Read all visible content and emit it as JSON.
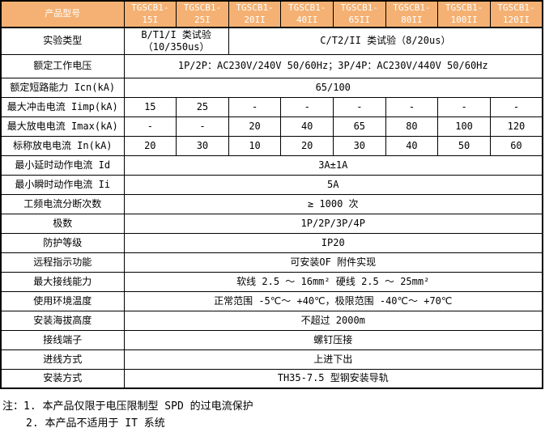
{
  "colors": {
    "header_bg": "#F4B173",
    "header_text": "#FFFFFF",
    "border": "#000000",
    "page_bg": "#FFFFFF"
  },
  "table": {
    "corner_label": "产品型号",
    "models": [
      "TGSCB1-15I",
      "TGSCB1-25I",
      "TGSCB1-20II",
      "TGSCB1-40II",
      "TGSCB1-65II",
      "TGSCB1-80II",
      "TGSCB1-100II",
      "TGSCB1-120II"
    ],
    "rows": [
      {
        "label": "实验类型",
        "size": "tall",
        "cells": [
          {
            "text": "B/T1/I 类试验（10/350us）",
            "span": 2
          },
          {
            "text": "C/T2/II 类试验（8/20us）",
            "span": 6
          }
        ]
      },
      {
        "label": "额定工作电压",
        "size": "mid",
        "cells": [
          {
            "text": "1P/2P：AC230V/240V 50/60Hz；3P/4P：AC230V/440V 50/60Hz",
            "span": 8
          }
        ]
      },
      {
        "label": "额定短路能力 Icn(kA)",
        "cells": [
          {
            "text": "65/100",
            "span": 8
          }
        ]
      },
      {
        "label": "最大冲击电流 Iimp(kA)",
        "cells": [
          {
            "text": "15",
            "span": 1
          },
          {
            "text": "25",
            "span": 1
          },
          {
            "text": "-",
            "span": 1
          },
          {
            "text": "-",
            "span": 1
          },
          {
            "text": "-",
            "span": 1
          },
          {
            "text": "-",
            "span": 1
          },
          {
            "text": "-",
            "span": 1
          },
          {
            "text": "-",
            "span": 1
          }
        ]
      },
      {
        "label": "最大放电电流 Imax(kA)",
        "cells": [
          {
            "text": "-",
            "span": 1
          },
          {
            "text": "-",
            "span": 1
          },
          {
            "text": "20",
            "span": 1
          },
          {
            "text": "40",
            "span": 1
          },
          {
            "text": "65",
            "span": 1
          },
          {
            "text": "80",
            "span": 1
          },
          {
            "text": "100",
            "span": 1
          },
          {
            "text": "120",
            "span": 1
          }
        ]
      },
      {
        "label": "标称放电电流 In(kA)",
        "cells": [
          {
            "text": "20",
            "span": 1
          },
          {
            "text": "30",
            "span": 1
          },
          {
            "text": "10",
            "span": 1
          },
          {
            "text": "20",
            "span": 1
          },
          {
            "text": "30",
            "span": 1
          },
          {
            "text": "40",
            "span": 1
          },
          {
            "text": "50",
            "span": 1
          },
          {
            "text": "60",
            "span": 1
          }
        ]
      },
      {
        "label": "最小延时动作电流 Id",
        "cells": [
          {
            "text": "3A±1A",
            "span": 8
          }
        ]
      },
      {
        "label": "最小瞬时动作电流 Ii",
        "cells": [
          {
            "text": "5A",
            "span": 8
          }
        ]
      },
      {
        "label": "工频电流分断次数",
        "cells": [
          {
            "text": "≥ 1000 次",
            "span": 8
          }
        ]
      },
      {
        "label": "极数",
        "cells": [
          {
            "text": "1P/2P/3P/4P",
            "span": 8
          }
        ]
      },
      {
        "label": "防护等级",
        "cells": [
          {
            "text": "IP20",
            "span": 8
          }
        ]
      },
      {
        "label": "远程指示功能",
        "cells": [
          {
            "text": "可安装OF 附件实现",
            "span": 8
          }
        ]
      },
      {
        "label": "最大接线能力",
        "cells": [
          {
            "text": "软线 2.5 ～ 16mm² 硬线 2.5 ～ 25mm²",
            "span": 8
          }
        ]
      },
      {
        "label": "使用环境温度",
        "cells": [
          {
            "text": "正常范围 -5℃～ +40℃，极限范围 -40℃～ +70℃",
            "span": 8
          }
        ]
      },
      {
        "label": "安装海拔高度",
        "cells": [
          {
            "text": "不超过 2000m",
            "span": 8
          }
        ]
      },
      {
        "label": "接线端子",
        "cells": [
          {
            "text": "螺钉压接",
            "span": 8
          }
        ]
      },
      {
        "label": "进线方式",
        "cells": [
          {
            "text": "上进下出",
            "span": 8
          }
        ]
      },
      {
        "label": "安装方式",
        "cells": [
          {
            "text": "TH35-7.5 型钢安装导轨",
            "span": 8
          }
        ]
      }
    ]
  },
  "notes": [
    "注：1. 本产品仅限于电压限制型 SPD 的过电流保护",
    "2. 本产品不适用于 IT 系统"
  ]
}
